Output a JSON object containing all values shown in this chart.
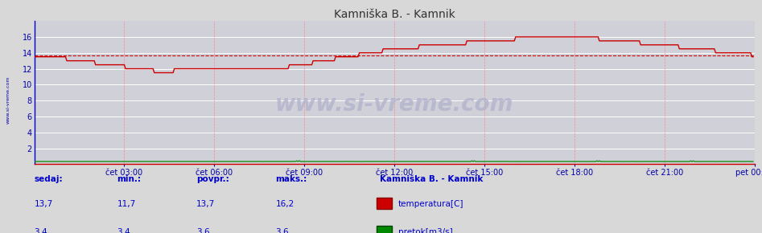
{
  "title": "Kamniška B. - Kamnik",
  "background_color": "#d8d8d8",
  "plot_bg_color": "#d0d0d8",
  "x_labels": [
    "čet 03:00",
    "čet 06:00",
    "čet 09:00",
    "čet 12:00",
    "čet 15:00",
    "čet 18:00",
    "čet 21:00",
    "pet 00:00"
  ],
  "x_ticks_norm": [
    0.125,
    0.25,
    0.375,
    0.5,
    0.625,
    0.75,
    0.875,
    1.0
  ],
  "total_points": 576,
  "ylim": [
    0,
    18
  ],
  "yticks": [
    2,
    4,
    6,
    8,
    10,
    12,
    14,
    16
  ],
  "temp_color": "#cc0000",
  "flow_color": "#008800",
  "avg_line_color": "#cc0000",
  "avg_value": 13.7,
  "temp_min": 11.7,
  "temp_max": 16.2,
  "temp_avg": 13.7,
  "temp_current": 13.7,
  "flow_min": 3.4,
  "flow_max": 3.6,
  "flow_avg": 3.6,
  "flow_current": 3.4,
  "watermark": "www.si-vreme.com",
  "left_label": "www.si-vreme.com",
  "legend_title": "Kamniška B. - Kamnik",
  "legend_temp": "temperatura[C]",
  "legend_flow": "pretok[m3/s]",
  "stats_labels": [
    "sedaj:",
    "min.:",
    "povpr.:",
    "maks.:"
  ],
  "stats_color": "#0000cc",
  "title_color": "#333333",
  "axis_color": "#0000aa"
}
